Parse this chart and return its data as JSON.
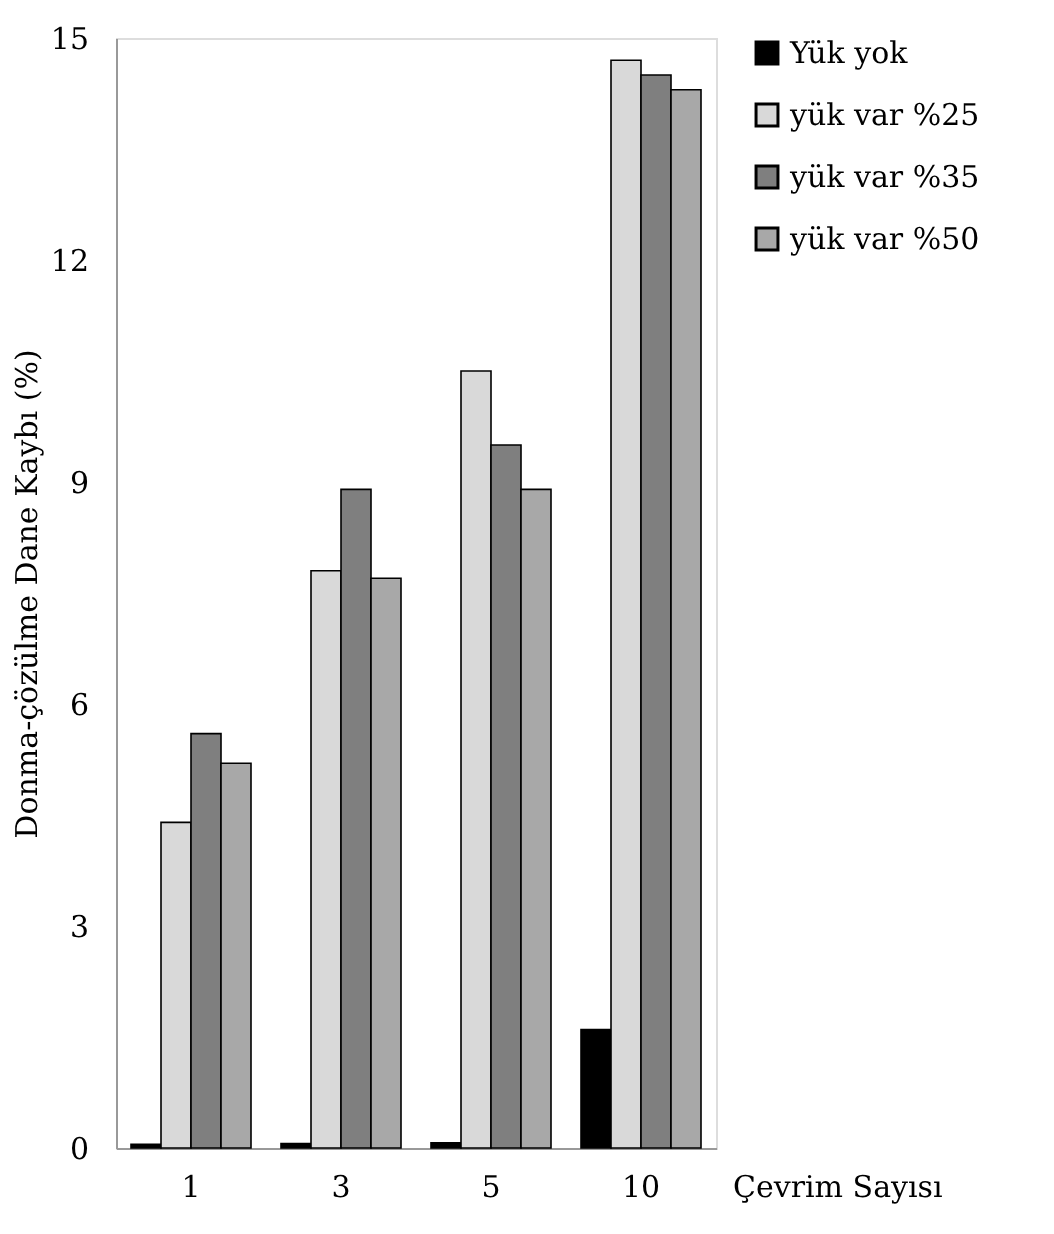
{
  "chart_data": {
    "type": "bar",
    "xlabel": "Çevrim Sayısı",
    "ylabel": "Donma-çözülme Dane Kaybı (%)",
    "categories": [
      "1",
      "3",
      "5",
      "10"
    ],
    "series": [
      {
        "name": "Yük yok",
        "color": "#000000",
        "values": [
          0.05,
          0.06,
          0.07,
          1.6
        ]
      },
      {
        "name": "yük var %25",
        "color": "#d9d9d9",
        "values": [
          4.4,
          7.8,
          10.5,
          14.7
        ]
      },
      {
        "name": "yük var %35",
        "color": "#7f7f7f",
        "values": [
          5.6,
          8.9,
          9.5,
          14.5
        ]
      },
      {
        "name": "yük var %50",
        "color": "#a8a8a8",
        "values": [
          5.2,
          7.7,
          8.9,
          14.3
        ]
      }
    ],
    "ylim": [
      0,
      15
    ],
    "yticks": [
      0,
      3,
      6,
      9,
      12,
      15
    ],
    "grid": false,
    "legend": "right"
  }
}
